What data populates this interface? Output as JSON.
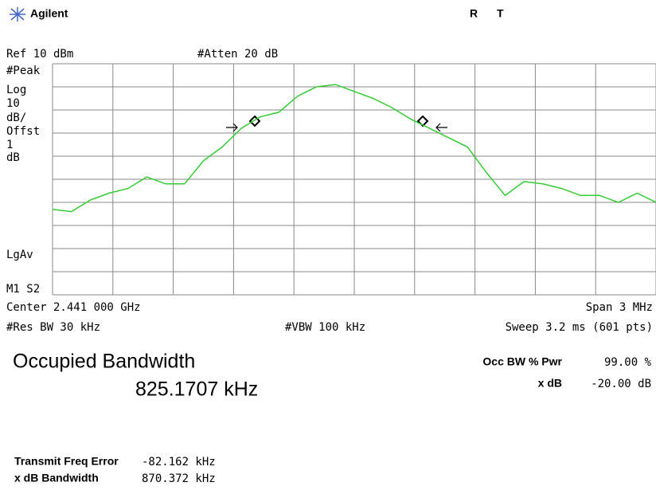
{
  "header": {
    "brand": "Agilent",
    "status": [
      "R",
      "T"
    ]
  },
  "settings": {
    "ref": "Ref 10 dBm",
    "atten": "#Atten 20 dB"
  },
  "side_labels": [
    "#Peak",
    "Log",
    "10",
    "dB/",
    "Offst",
    "1",
    "dB",
    "LgAv",
    "M1  S2"
  ],
  "footer": {
    "center": "Center 2.441 000 GHz",
    "span": "Span 3 MHz",
    "rbw": "#Res BW 30 kHz",
    "vbw": "#VBW 100 kHz",
    "sweep": "Sweep 3.2 ms (601 pts)"
  },
  "measurement": {
    "title": "Occupied Bandwidth",
    "value": "825.1707 kHz",
    "params": [
      {
        "label": "Occ BW % Pwr",
        "value": "99.00 %"
      },
      {
        "label": "x dB",
        "value": "-20.00 dB"
      }
    ],
    "results": [
      {
        "label": "Transmit Freq Error",
        "value": "-82.162 kHz"
      },
      {
        "label": "x dB Bandwidth",
        "value": "870.372 kHz"
      }
    ]
  },
  "trace": {
    "color": "#33cc33",
    "ylim": [
      -90,
      10
    ],
    "values": [
      -53,
      -54,
      -49,
      -46,
      -44,
      -39,
      -42,
      -42,
      -32,
      -26,
      -18,
      -13,
      -11,
      -4,
      0,
      1,
      -2,
      -5,
      -9,
      -14,
      -18,
      -22,
      -26,
      -37,
      -47,
      -41,
      -42,
      -44,
      -47,
      -47,
      -50,
      -46,
      -50
    ]
  }
}
